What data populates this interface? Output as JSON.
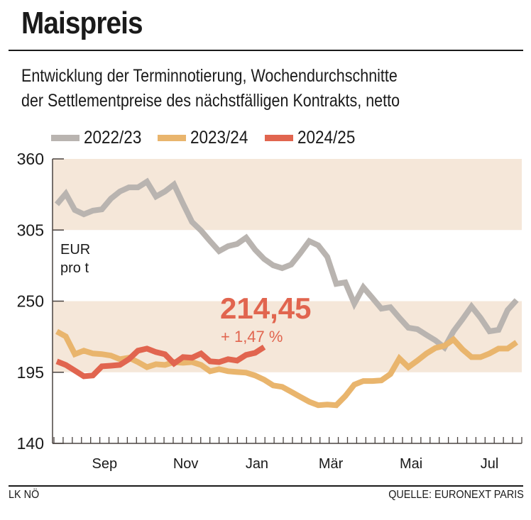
{
  "header": {
    "title": "Maispreis",
    "subtitle_line1": "Entwicklung der Terminnotierung, Wochendurchschnitte",
    "subtitle_line2": "der Settlementpreise des nächstfälligen Kontrakts, netto"
  },
  "footer": {
    "left": "LK NÖ",
    "right": "QUELLE: EURONEXT PARIS"
  },
  "chart_data": {
    "type": "line",
    "title": "Maispreis",
    "subtitle": "Entwicklung der Terminnotierung, Wochendurchschnitte der Settlementpreise des nächstfälligen Kontrakts, netto",
    "ylabel": "EUR pro t",
    "ylabel_lines": [
      "EUR",
      "pro t"
    ],
    "xlabel": "",
    "ylim": [
      140,
      360
    ],
    "yticks": [
      140,
      195,
      250,
      305,
      360
    ],
    "ytick_labels": [
      "140",
      "195",
      "250",
      "305",
      "360"
    ],
    "shaded_bands": [
      [
        195,
        250
      ],
      [
        305,
        360
      ]
    ],
    "band_color": "#f5e7d9",
    "x_unit": "week",
    "x_count": 52,
    "month_labels": [
      {
        "label": "Sep",
        "week": 5.3
      },
      {
        "label": "Nov",
        "week": 14.3
      },
      {
        "label": "Jan",
        "week": 22.2
      },
      {
        "label": "Mär",
        "week": 30.4
      },
      {
        "label": "Mai",
        "week": 39.3
      },
      {
        "label": "Jul",
        "week": 48
      }
    ],
    "legend_position": "top-left",
    "grid": false,
    "series": [
      {
        "name": "2022/23",
        "color": "#b9b4b0",
        "values": [
          324.9,
          333.1,
          320.5,
          317.2,
          320.0,
          321.0,
          329.3,
          334.8,
          338.0,
          338.0,
          342.4,
          330.9,
          334.8,
          340.2,
          325.4,
          311.2,
          304.6,
          296.4,
          288.7,
          292.5,
          294.2,
          299.1,
          289.8,
          282.6,
          277.7,
          275.5,
          278.3,
          287.0,
          296.4,
          293.1,
          284.3,
          263.4,
          264.5,
          248.1,
          260.7,
          252.5,
          244.2,
          245.3,
          237.1,
          229.4,
          228.3,
          223.9,
          219.6,
          214.1,
          226.7,
          236.0,
          245.9,
          237.1,
          226.7,
          227.8,
          243.1,
          250.8
        ]
      },
      {
        "name": "2023/24",
        "color": "#e9b56d",
        "values": [
          226.5,
          222.7,
          209.0,
          211.7,
          209.5,
          209.0,
          207.9,
          205.1,
          206.2,
          202.9,
          199.0,
          201.2,
          200.7,
          202.9,
          202.3,
          202.9,
          200.7,
          195.8,
          197.4,
          195.8,
          195.2,
          194.7,
          192.5,
          189.2,
          184.8,
          183.7,
          179.9,
          176.0,
          172.2,
          169.5,
          170.0,
          169.5,
          176.6,
          185.4,
          188.2,
          188.2,
          188.7,
          193.6,
          205.7,
          199.0,
          204.0,
          209.5,
          213.8,
          215.5,
          220.4,
          212.7,
          206.7,
          206.7,
          209.5,
          213.3,
          213.3,
          218.2
        ]
      },
      {
        "name": "2024/25",
        "color": "#e1654f",
        "values": [
          203.4,
          200.7,
          196.3,
          191.9,
          192.5,
          199.6,
          200.1,
          200.7,
          205.1,
          211.7,
          213.3,
          210.6,
          208.9,
          201.8,
          206.7,
          206.2,
          209.5,
          203.4,
          202.9,
          205.1,
          204.0,
          208.4,
          210.0,
          214.45
        ]
      }
    ],
    "annotations": [
      {
        "text": "214,45",
        "series": "2024/25",
        "role": "last-value"
      },
      {
        "text": "+ 1,47 %",
        "series": "2024/25",
        "role": "change"
      }
    ]
  }
}
